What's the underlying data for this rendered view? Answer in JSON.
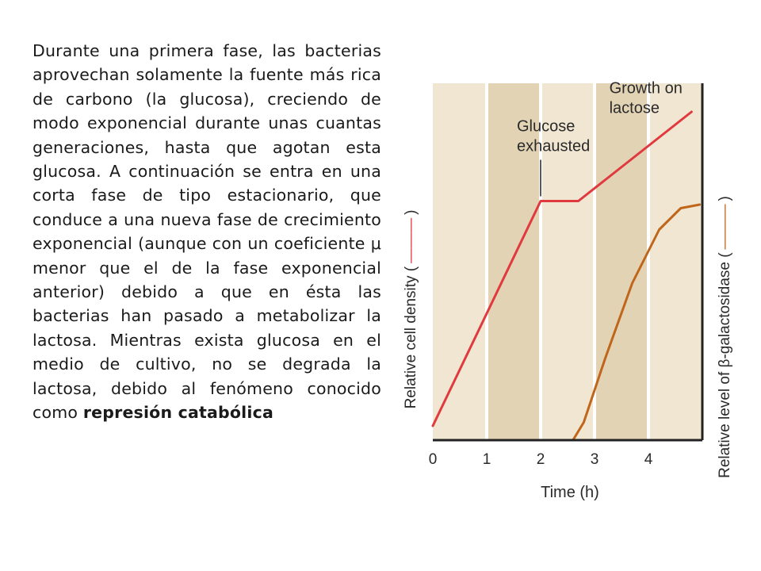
{
  "text": {
    "body": "Durante una primera fase, las bacterias aprovechan solamente la fuente más rica de carbono (la glucosa), creciendo de modo exponencial durante unas cuantas generaciones, hasta que agotan esta glucosa. A continuación se entra en una corta fase de tipo estacionario, que conduce a una nueva fase de crecimiento exponencial (aunque con un coeficiente μ menor que el de la fase exponencial anterior) debido a que en ésta las bacterias han pasado a metabolizar la lactosa. Mientras exista glucosa en el medio de cultivo, no se degrada la lactosa, debido al fenómeno conocido como",
    "bold_end": "represión catabólica"
  },
  "colors": {
    "band_light": "#f0e6d2",
    "band_dark": "#e3d3b5",
    "cell_density": "#e03a3e",
    "galactosidase": "#c0661b",
    "axis": "#222222"
  },
  "chart_data": {
    "type": "line",
    "xlabel": "Time (h)",
    "ylabel_left": "Relative cell density (",
    "ylabel_left_end": ")",
    "ylabel_right": "Relative level of β-galactosidase (",
    "ylabel_right_end": ")",
    "x_ticks": [
      "0",
      "1",
      "2",
      "3",
      "4"
    ],
    "xlim": [
      0,
      5
    ],
    "ylim": [
      0,
      1
    ],
    "series": [
      {
        "key": "cell_density",
        "x": [
          0,
          2.0,
          2.7,
          4.8
        ],
        "y": [
          0.04,
          0.67,
          0.67,
          0.92
        ]
      },
      {
        "key": "galactosidase",
        "x": [
          2.3,
          2.6,
          2.8,
          3.2,
          3.7,
          4.2,
          4.6,
          4.95
        ],
        "y": [
          0.0,
          0.0,
          0.05,
          0.23,
          0.44,
          0.59,
          0.65,
          0.66
        ]
      }
    ],
    "annotations": [
      {
        "lines": [
          "Glucose",
          "exhausted"
        ],
        "x": 2.0,
        "y": 0.67
      },
      {
        "lines": [
          "Growth on",
          "lactose"
        ],
        "x": 3.2,
        "y": 0.95
      }
    ]
  }
}
